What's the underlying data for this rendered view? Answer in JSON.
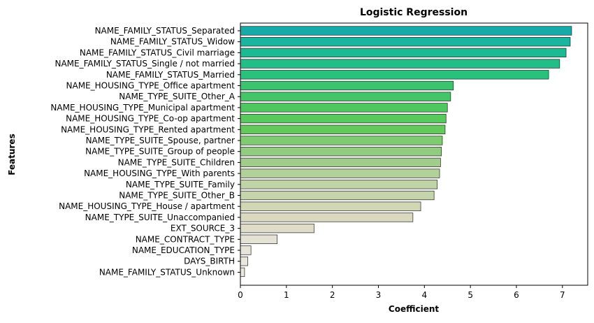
{
  "chart_data": {
    "type": "bar",
    "orientation": "horizontal",
    "title": "Logistic Regression",
    "xlabel": "Coefficient",
    "ylabel": "Features",
    "xlim": [
      0,
      7.55
    ],
    "xticks": [
      "0",
      "1",
      "2",
      "3",
      "4",
      "5",
      "6",
      "7"
    ],
    "grid": false,
    "categories": [
      "NAME_FAMILY_STATUS_Separated",
      "NAME_FAMILY_STATUS_Widow",
      "NAME_FAMILY_STATUS_Civil marriage",
      "NAME_FAMILY_STATUS_Single / not married",
      "NAME_FAMILY_STATUS_Married",
      "NAME_HOUSING_TYPE_Office apartment",
      "NAME_TYPE_SUITE_Other_A",
      "NAME_HOUSING_TYPE_Municipal apartment",
      "NAME_HOUSING_TYPE_Co-op apartment",
      "NAME_HOUSING_TYPE_Rented apartment",
      "NAME_TYPE_SUITE_Spouse, partner",
      "NAME_TYPE_SUITE_Group of people",
      "NAME_TYPE_SUITE_Children",
      "NAME_HOUSING_TYPE_With parents",
      "NAME_TYPE_SUITE_Family",
      "NAME_TYPE_SUITE_Other_B",
      "NAME_HOUSING_TYPE_House / apartment",
      "NAME_TYPE_SUITE_Unaccompanied",
      "EXT_SOURCE_3",
      "NAME_CONTRACT_TYPE",
      "NAME_EDUCATION_TYPE",
      "DAYS_BIRTH",
      "NAME_FAMILY_STATUS_Unknown"
    ],
    "values": [
      7.2,
      7.17,
      7.08,
      6.94,
      6.7,
      4.63,
      4.57,
      4.5,
      4.47,
      4.45,
      4.39,
      4.37,
      4.35,
      4.33,
      4.28,
      4.21,
      3.92,
      3.75,
      1.6,
      0.8,
      0.23,
      0.16,
      0.09
    ],
    "colors": [
      "#17aaa8",
      "#19b59f",
      "#1cba93",
      "#22be87",
      "#28c27d",
      "#3cc370",
      "#44c568",
      "#4ec760",
      "#58c95c",
      "#64c95d",
      "#7fcb70",
      "#92cc80",
      "#a1cc8b",
      "#b2d09a",
      "#bed4a6",
      "#c6d4ac",
      "#d1d6b4",
      "#dad9bf",
      "#dfdcc7",
      "#e4e2d5",
      "#e7e4d9",
      "#e9e6dc",
      "#ebe8df"
    ]
  }
}
